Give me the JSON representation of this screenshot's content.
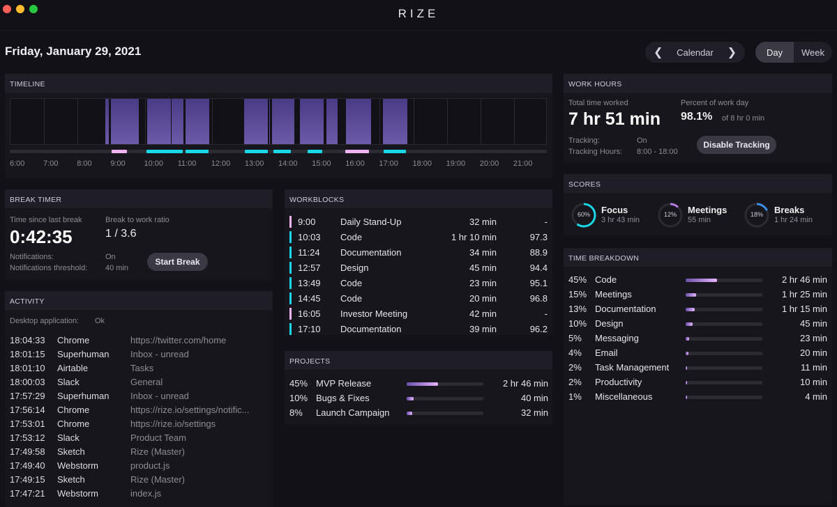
{
  "window": {
    "title": "RIZE"
  },
  "header": {
    "date": "Friday, January 29, 2021",
    "calendar_label": "Calendar",
    "view_options": [
      "Day",
      "Week"
    ],
    "active_view": "Day"
  },
  "colors": {
    "focus": "#19d7e6",
    "meeting": "#f0b4f0",
    "block": "#5a4893",
    "background": "#121118"
  },
  "timeline": {
    "title": "TIMELINE",
    "hours": [
      "6:00",
      "7:00",
      "8:00",
      "9:00",
      "10:00",
      "11:00",
      "12:00",
      "13:00",
      "14:00",
      "15:00",
      "16:00",
      "17:00",
      "18:00",
      "19:00",
      "20:00",
      "21:00"
    ],
    "activity_blocks": [
      [
        "8:50",
        "8:56"
      ],
      [
        "8:59",
        "9:50"
      ],
      [
        "10:04",
        "10:47"
      ],
      [
        "10:48",
        "11:09"
      ],
      [
        "11:13",
        "11:55"
      ],
      [
        "12:58",
        "13:40"
      ],
      [
        "13:42",
        "13:44"
      ],
      [
        "13:48",
        "14:27"
      ],
      [
        "14:38",
        "15:20"
      ],
      [
        "15:25",
        "15:45"
      ],
      [
        "16:00",
        "16:45"
      ],
      [
        "17:06",
        "17:49"
      ]
    ],
    "workblock_markers": [
      {
        "start": "9:02",
        "end": "9:30",
        "type": "meeting"
      },
      {
        "start": "10:04",
        "end": "11:09",
        "type": "focus"
      },
      {
        "start": "11:14",
        "end": "11:55",
        "type": "focus"
      },
      {
        "start": "13:00",
        "end": "13:41",
        "type": "focus"
      },
      {
        "start": "13:51",
        "end": "14:22",
        "type": "focus"
      },
      {
        "start": "14:52",
        "end": "15:19",
        "type": "focus"
      },
      {
        "start": "16:00",
        "end": "16:42",
        "type": "meeting"
      },
      {
        "start": "17:08",
        "end": "17:48",
        "type": "focus"
      }
    ]
  },
  "break_timer": {
    "title": "BREAK TIMER",
    "since_label": "Time since last break",
    "since_value": "0:42:35",
    "ratio_label": "Break to work ratio",
    "ratio_value": "1 / 3.6",
    "notifications_label": "Notifications:",
    "notifications_value": "On",
    "threshold_label": "Notifications threshold:",
    "threshold_value": "40 min",
    "start_break": "Start Break"
  },
  "activity": {
    "title": "ACTIVITY",
    "desktop_label": "Desktop application:",
    "desktop_value": "Ok",
    "rows": [
      {
        "time": "18:04:33",
        "app": "Chrome",
        "detail": "https://twitter.com/home"
      },
      {
        "time": "18:01:15",
        "app": "Superhuman",
        "detail": "Inbox - unread"
      },
      {
        "time": "18:01:10",
        "app": "Airtable",
        "detail": "Tasks"
      },
      {
        "time": "18:00:03",
        "app": "Slack",
        "detail": "General"
      },
      {
        "time": "17:57:29",
        "app": "Superhuman",
        "detail": "Inbox - unread"
      },
      {
        "time": "17:56:14",
        "app": "Chrome",
        "detail": "https://rize.io/settings/notific..."
      },
      {
        "time": "17:53:01",
        "app": "Chrome",
        "detail": "https://rize.io/settings"
      },
      {
        "time": "17:53:12",
        "app": "Slack",
        "detail": "Product Team"
      },
      {
        "time": "17:49:58",
        "app": "Sketch",
        "detail": "Rize (Master)"
      },
      {
        "time": "17:49:40",
        "app": "Webstorm",
        "detail": "product.js"
      },
      {
        "time": "17:49:15",
        "app": "Sketch",
        "detail": "Rize (Master)"
      },
      {
        "time": "17:47:21",
        "app": "Webstorm",
        "detail": "index.js"
      }
    ]
  },
  "workblocks": {
    "title": "WORKBLOCKS",
    "rows": [
      {
        "time": "9:00",
        "name": "Daily Stand-Up",
        "duration": "32 min",
        "score": "-",
        "type": "meeting"
      },
      {
        "time": "10:03",
        "name": "Code",
        "duration": "1 hr 10 min",
        "score": "97.3",
        "type": "focus"
      },
      {
        "time": "11:24",
        "name": "Documentation",
        "duration": "34 min",
        "score": "88.9",
        "type": "focus"
      },
      {
        "time": "12:57",
        "name": "Design",
        "duration": "45 min",
        "score": "94.4",
        "type": "focus"
      },
      {
        "time": "13:49",
        "name": "Code",
        "duration": "23 min",
        "score": "95.1",
        "type": "focus"
      },
      {
        "time": "14:45",
        "name": "Code",
        "duration": "20 min",
        "score": "96.8",
        "type": "focus"
      },
      {
        "time": "16:05",
        "name": "Investor Meeting",
        "duration": "42 min",
        "score": "-",
        "type": "meeting"
      },
      {
        "time": "17:10",
        "name": "Documentation",
        "duration": "39 min",
        "score": "96.2",
        "type": "focus"
      }
    ]
  },
  "projects": {
    "title": "PROJECTS",
    "rows": [
      {
        "pct": "45%",
        "value": 45,
        "name": "MVP Release",
        "time": "2 hr 46 min"
      },
      {
        "pct": "10%",
        "value": 10,
        "name": "Bugs & Fixes",
        "time": "40 min"
      },
      {
        "pct": "8%",
        "value": 8,
        "name": "Launch Campaign",
        "time": "32 min"
      }
    ]
  },
  "work_hours": {
    "title": "WORK HOURS",
    "total_label": "Total time worked",
    "total_value": "7 hr 51 min",
    "percent_label": "Percent of work day",
    "percent_value": "98.1%",
    "percent_of": "of 8 hr 0 min",
    "tracking_label": "Tracking:",
    "tracking_value": "On",
    "hours_label": "Tracking Hours:",
    "hours_value": "8:00 - 18:00",
    "disable_button": "Disable Tracking"
  },
  "scores": {
    "title": "SCORES",
    "items": [
      {
        "name": "Focus",
        "pct": "60%",
        "value": 60,
        "time": "3 hr 43 min",
        "color": "#19d7e6"
      },
      {
        "name": "Meetings",
        "pct": "12%",
        "value": 12,
        "time": "55 min",
        "color": "#b57ae0"
      },
      {
        "name": "Breaks",
        "pct": "18%",
        "value": 18,
        "time": "1 hr 24 min",
        "color": "#3a8ee8"
      }
    ]
  },
  "time_breakdown": {
    "title": "TIME BREAKDOWN",
    "rows": [
      {
        "pct": "45%",
        "value": 45,
        "name": "Code",
        "time": "2 hr 46 min"
      },
      {
        "pct": "15%",
        "value": 15,
        "name": "Meetings",
        "time": "1 hr 25 min"
      },
      {
        "pct": "13%",
        "value": 13,
        "name": "Documentation",
        "time": "1 hr 15 min"
      },
      {
        "pct": "10%",
        "value": 10,
        "name": "Design",
        "time": "45 min"
      },
      {
        "pct": "5%",
        "value": 5,
        "name": "Messaging",
        "time": "23 min"
      },
      {
        "pct": "4%",
        "value": 4,
        "name": "Email",
        "time": "20 min"
      },
      {
        "pct": "2%",
        "value": 2,
        "name": "Task Management",
        "time": "11 min"
      },
      {
        "pct": "2%",
        "value": 2,
        "name": "Productivity",
        "time": "10 min"
      },
      {
        "pct": "1%",
        "value": 1,
        "name": "Miscellaneous",
        "time": "4 min"
      }
    ]
  }
}
